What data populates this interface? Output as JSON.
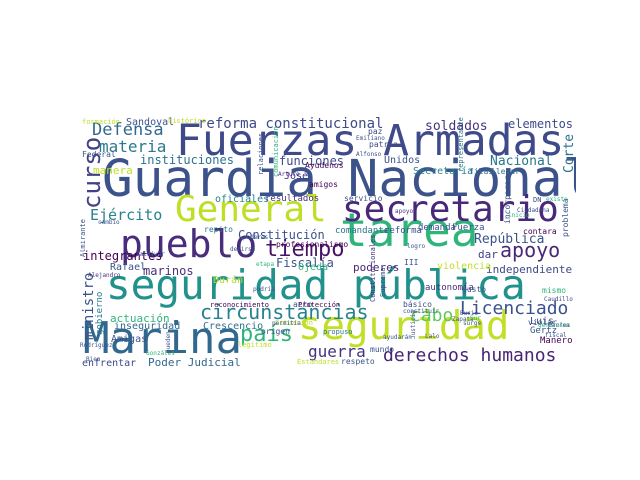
{
  "cloud": {
    "words": [
      {
        "text": "Guardia Nacional",
        "color": "#3b528b"
      },
      {
        "text": "Fuerzas Armadas",
        "color": "#3e4a89"
      },
      {
        "text": "Marina",
        "color": "#31688e"
      },
      {
        "text": "seguridad pública",
        "color": "#21918c"
      },
      {
        "text": "tarea",
        "color": "#2fb47c"
      },
      {
        "text": "seguridad",
        "color": "#c0df25"
      },
      {
        "text": "General",
        "color": "#bddf26"
      },
      {
        "text": "secretario",
        "color": "#482878"
      },
      {
        "text": "pueblo",
        "color": "#472d7b"
      },
      {
        "text": "circunstancias",
        "color": "#26828e"
      },
      {
        "text": "Licenciado",
        "color": "#3b528b"
      },
      {
        "text": "derechos humanos",
        "color": "#482475"
      },
      {
        "text": "tiempo",
        "color": "#471365"
      },
      {
        "text": "apoyo",
        "color": "#482878"
      },
      {
        "text": "curso",
        "color": "#424086"
      },
      {
        "text": "Defensa",
        "color": "#31688e"
      },
      {
        "text": "materia",
        "color": "#2a788e"
      },
      {
        "text": "reforma constitucional",
        "color": "#3e4a89"
      },
      {
        "text": "país",
        "color": "#2fb47c"
      },
      {
        "text": "guerra",
        "color": "#46327e"
      },
      {
        "text": "cabo",
        "color": "#5ec962"
      },
      {
        "text": "Ejército",
        "color": "#26828e"
      },
      {
        "text": "República",
        "color": "#3b528b"
      },
      {
        "text": "soldados",
        "color": "#46327e"
      },
      {
        "text": "elementos",
        "color": "#3e4a89"
      },
      {
        "text": "Nacional",
        "color": "#2a788e"
      },
      {
        "text": "ministro",
        "color": "#3b528b"
      },
      {
        "text": "Corte",
        "color": "#2c728e"
      },
      {
        "text": "integrantes",
        "color": "#440154"
      },
      {
        "text": "Fiscalía",
        "color": "#3b528b"
      },
      {
        "text": "marinos",
        "color": "#46327e"
      },
      {
        "text": "instituciones",
        "color": "#2c728e"
      },
      {
        "text": "funciones",
        "color": "#3e4a89"
      },
      {
        "text": "Constitución",
        "color": "#3b528b"
      },
      {
        "text": "poderes",
        "color": "#482878"
      },
      {
        "text": "Poder Judicial",
        "color": "#31688e"
      },
      {
        "text": "dar",
        "color": "#424086"
      },
      {
        "text": "independiente",
        "color": "#3e4a89"
      },
      {
        "text": "actuación",
        "color": "#2fb47c"
      },
      {
        "text": "inseguridad",
        "color": "#31688e"
      },
      {
        "text": "Crescencio",
        "color": "#2c728e"
      },
      {
        "text": "enfrentar",
        "color": "#3e4a89"
      },
      {
        "text": "Rafael",
        "color": "#3b528b"
      },
      {
        "text": "Amigas",
        "color": "#3b528b"
      },
      {
        "text": "gobierno",
        "color": "#2a788e"
      },
      {
        "text": "Durán",
        "color": "#b5de2b"
      },
      {
        "text": "Ojeda",
        "color": "#2fb47c"
      },
      {
        "text": "manera",
        "color": "#bddf26"
      },
      {
        "text": "Sandoval",
        "color": "#3b528b"
      },
      {
        "text": "José",
        "color": "#46327e"
      },
      {
        "text": "Unidos",
        "color": "#3b528b"
      },
      {
        "text": "Secretaría",
        "color": "#26828e"
      },
      {
        "text": "oficiales",
        "color": "#26828e"
      },
      {
        "text": "resultados",
        "color": "#46327e"
      },
      {
        "text": "servicio",
        "color": "#3b528b"
      },
      {
        "text": "comandante",
        "color": "#2c728e"
      },
      {
        "text": "reforma",
        "color": "#3b528b"
      },
      {
        "text": "demanda",
        "color": "#3b528b"
      },
      {
        "text": "Fuerza",
        "color": "#3b528b"
      },
      {
        "text": "violencia",
        "color": "#c0df25"
      },
      {
        "text": "Luis",
        "color": "#3b528b"
      },
      {
        "text": "Gertz",
        "color": "#3b528b"
      },
      {
        "text": "Manero",
        "color": "#440154"
      },
      {
        "text": "autonomía",
        "color": "#46327e"
      },
      {
        "text": "básico",
        "color": "#3b528b"
      },
      {
        "text": "acto",
        "color": "#3b528b"
      },
      {
        "text": "mundo",
        "color": "#3b528b"
      },
      {
        "text": "respeto",
        "color": "#3b528b"
      },
      {
        "text": "patria",
        "color": "#3e4a89"
      },
      {
        "text": "paz",
        "color": "#3e4a89"
      },
      {
        "text": "Federal",
        "color": "#3b528b"
      },
      {
        "text": "contara",
        "color": "#440154"
      },
      {
        "text": "problema",
        "color": "#3b528b"
      },
      {
        "text": "repito",
        "color": "#2c728e"
      },
      {
        "text": "profesionalismo",
        "color": "#440154"
      },
      {
        "text": "Ayudenos",
        "color": "#440154"
      },
      {
        "text": "amigos",
        "color": "#440154"
      },
      {
        "text": "formación",
        "color": "#bddf26"
      },
      {
        "text": "histórico",
        "color": "#bddf26"
      },
      {
        "text": "reconocimiento",
        "color": "#440154"
      },
      {
        "text": "Protección",
        "color": "#440154"
      },
      {
        "text": "Estándares",
        "color": "#bddf26"
      },
      {
        "text": "legítimo",
        "color": "#bddf26"
      },
      {
        "text": "propuso",
        "color": "#2c728e"
      },
      {
        "text": "Situación",
        "color": "#bddf26"
      },
      {
        "text": "origen",
        "color": "#3b528b"
      },
      {
        "text": "filas",
        "color": "#2c728e"
      },
      {
        "text": "llevar",
        "color": "#2c728e"
      },
      {
        "text": "gusto",
        "color": "#3b528b"
      },
      {
        "text": "violar",
        "color": "#3e4a89"
      },
      {
        "text": "mismo",
        "color": "#2fb47c"
      },
      {
        "text": "III",
        "color": "#3b528b"
      },
      {
        "text": "incorporar",
        "color": "#3b528b"
      },
      {
        "text": "Caudillo",
        "color": "#3e4a89"
      },
      {
        "text": "Alfonso",
        "color": "#3b528b"
      },
      {
        "text": "Emiliano",
        "color": "#3b528b"
      },
      {
        "text": "Zapata",
        "color": "#3b528b"
      },
      {
        "text": "Lalo",
        "color": "#3b528b"
      },
      {
        "text": "surge",
        "color": "#3b528b"
      },
      {
        "text": "Bucio",
        "color": "#3b528b"
      },
      {
        "text": "Sur",
        "color": "#2fb47c"
      },
      {
        "text": "DN",
        "color": "#3b528b"
      },
      {
        "text": "inicio",
        "color": "#2fb47c"
      },
      {
        "text": "logro",
        "color": "#3b528b"
      },
      {
        "text": "podría",
        "color": "#3b528b"
      },
      {
        "text": "Arturo",
        "color": "#46327e"
      },
      {
        "text": "apoyo",
        "color": "#46327e"
      },
      {
        "text": "Ciudadana",
        "color": "#3e4a89"
      },
      {
        "text": "Justicia",
        "color": "#3b528b"
      },
      {
        "text": "Alejandro",
        "color": "#46327e"
      },
      {
        "text": "Zaldívar",
        "color": "#3b528b"
      },
      {
        "text": "permitía",
        "color": "#3b528b"
      },
      {
        "text": "constituir",
        "color": "#3b528b"
      },
      {
        "text": "Constitucionales",
        "color": "#46327e"
      },
      {
        "text": "Suprema",
        "color": "#3b528b"
      },
      {
        "text": "representante",
        "color": "#2c728e"
      },
      {
        "text": "relaciones",
        "color": "#3b528b"
      },
      {
        "text": "comunicación",
        "color": "#2fb47c"
      },
      {
        "text": "Almirante",
        "color": "#3b528b"
      },
      {
        "text": "cambio",
        "color": "#3b528b"
      },
      {
        "text": "Bien",
        "color": "#3b528b"
      },
      {
        "text": "generales",
        "color": "#2fb47c"
      },
      {
        "text": "fiscal",
        "color": "#3b528b"
      },
      {
        "text": "Rodríguez",
        "color": "#3b528b"
      },
      {
        "text": "Gonzáles",
        "color": "#2fb47c"
      },
      {
        "text": "poderes",
        "color": "#3b528b"
      },
      {
        "text": "decirse",
        "color": "#3b528b"
      },
      {
        "text": "ayudarán",
        "color": "#3b528b"
      },
      {
        "text": "Carrea",
        "color": "#3b528b"
      },
      {
        "text": "existe",
        "color": "#2fb47c"
      },
      {
        "text": "pueden",
        "color": "#3b528b"
      },
      {
        "text": "etapa",
        "color": "#2fb47c"
      }
    ]
  }
}
